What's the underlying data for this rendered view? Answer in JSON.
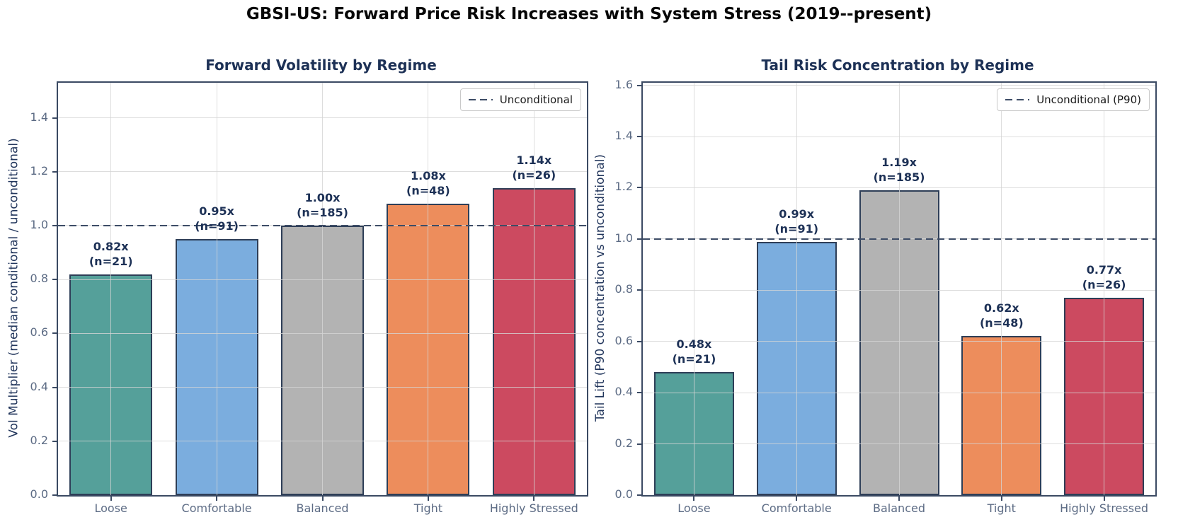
{
  "figure_title": "GBSI-US: Forward Price Risk Increases with System Stress (2019--present)",
  "colors": {
    "bar_fills": [
      "#55a09a",
      "#7badde",
      "#b3b3b3",
      "#ed8d5c",
      "#cc4a60"
    ],
    "bar_edge": "#2e3e57",
    "reference_line": "#3d4c66",
    "grid": "#d4d4d4",
    "spine": "#3b4a63",
    "chart_title": "#1d3156",
    "annotation": "#1d3156",
    "tick_label": "#5c6b84",
    "axis_label": "#22365c",
    "main_title": "#070707"
  },
  "chart_data": [
    {
      "type": "bar",
      "title": "Forward Volatility by Regime",
      "ylabel": "Vol Multiplier (median conditional / unconditional)",
      "categories": [
        "Loose",
        "Comfortable",
        "Balanced",
        "Tight",
        "Highly Stressed"
      ],
      "values": [
        0.82,
        0.95,
        1.0,
        1.08,
        1.14
      ],
      "counts": [
        21,
        91,
        185,
        48,
        26
      ],
      "annotations": [
        {
          "value": "0.82x",
          "n": "(n=21)"
        },
        {
          "value": "0.95x",
          "n": "(n=91)"
        },
        {
          "value": "1.00x",
          "n": "(n=185)"
        },
        {
          "value": "1.08x",
          "n": "(n=48)"
        },
        {
          "value": "1.14x",
          "n": "(n=26)"
        }
      ],
      "ylim": [
        0,
        1.53
      ],
      "yticks": [
        0.0,
        0.2,
        0.4,
        0.6,
        0.8,
        1.0,
        1.2,
        1.4
      ],
      "reference_line_y": 1.0,
      "legend_label": "Unconditional",
      "legend_position": "upper right",
      "grid": true
    },
    {
      "type": "bar",
      "title": "Tail Risk Concentration by Regime",
      "ylabel": "Tail Lift (P90 concentration vs unconditional)",
      "categories": [
        "Loose",
        "Comfortable",
        "Balanced",
        "Tight",
        "Highly Stressed"
      ],
      "values": [
        0.48,
        0.99,
        1.19,
        0.62,
        0.77
      ],
      "counts": [
        21,
        91,
        185,
        48,
        26
      ],
      "annotations": [
        {
          "value": "0.48x",
          "n": "(n=21)"
        },
        {
          "value": "0.99x",
          "n": "(n=91)"
        },
        {
          "value": "1.19x",
          "n": "(n=185)"
        },
        {
          "value": "0.62x",
          "n": "(n=48)"
        },
        {
          "value": "0.77x",
          "n": "(n=26)"
        }
      ],
      "ylim": [
        0,
        1.61
      ],
      "yticks": [
        0.0,
        0.2,
        0.4,
        0.6,
        0.8,
        1.0,
        1.2,
        1.4,
        1.6
      ],
      "reference_line_y": 1.0,
      "legend_label": "Unconditional (P90)",
      "legend_position": "upper right",
      "grid": true
    }
  ]
}
